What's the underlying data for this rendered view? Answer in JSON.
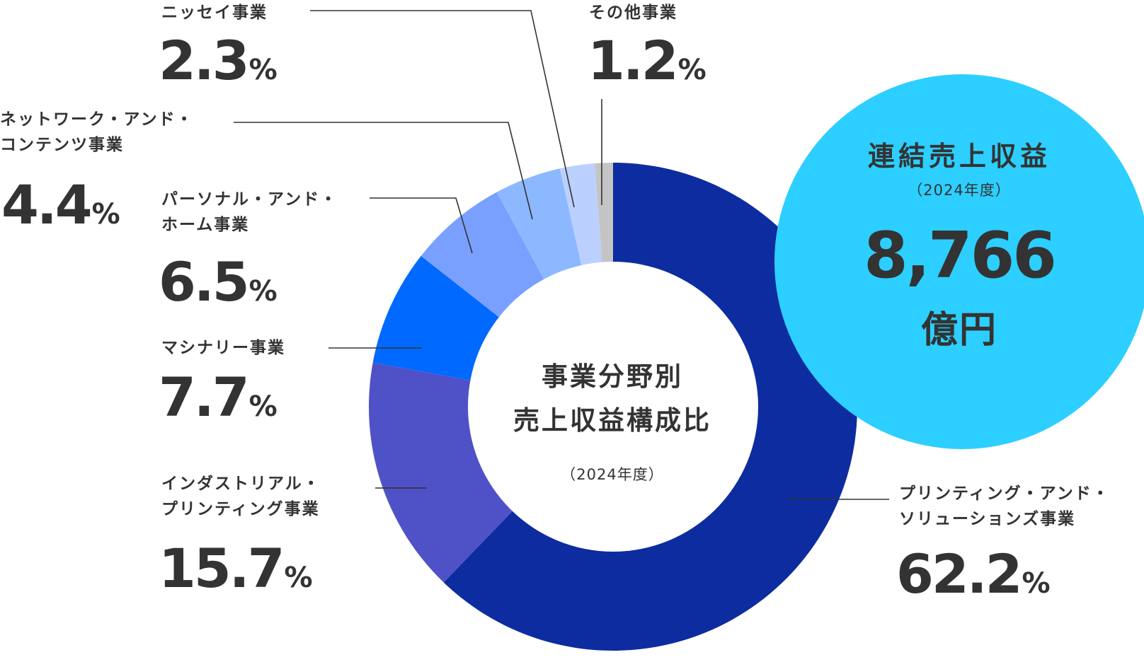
{
  "chart_data": {
    "type": "pie",
    "title": "事業分野別\n売上収益構成比",
    "subtitle": "（2024年度）",
    "unit": "%",
    "colors": [
      "#0d2c9f",
      "#4f52c6",
      "#0069ff",
      "#79a0ff",
      "#8cb8ff",
      "#bcd0ff",
      "#c4c4c4"
    ],
    "slices": [
      {
        "label": "プリンティング・アンド・\nソリューションズ事業",
        "value": 62.2,
        "display": "62.2"
      },
      {
        "label": "インダストリアル・\nプリンティング事業",
        "value": 15.7,
        "display": "15.7"
      },
      {
        "label": "マシナリー事業",
        "value": 7.7,
        "display": "7.7"
      },
      {
        "label": "パーソナル・アンド・\nホーム事業",
        "value": 6.5,
        "display": "6.5"
      },
      {
        "label": "ネットワーク・アンド・\nコンテンツ事業",
        "value": 4.4,
        "display": "4.4"
      },
      {
        "label": "ニッセイ事業",
        "value": 2.3,
        "display": "2.3"
      },
      {
        "label": "その他事業",
        "value": 1.2,
        "display": "1.2"
      }
    ]
  },
  "total": {
    "label": "連結売上収益",
    "year": "（2024年度）",
    "value": "8,766",
    "unit": "億円",
    "color": "#2ccfff"
  }
}
